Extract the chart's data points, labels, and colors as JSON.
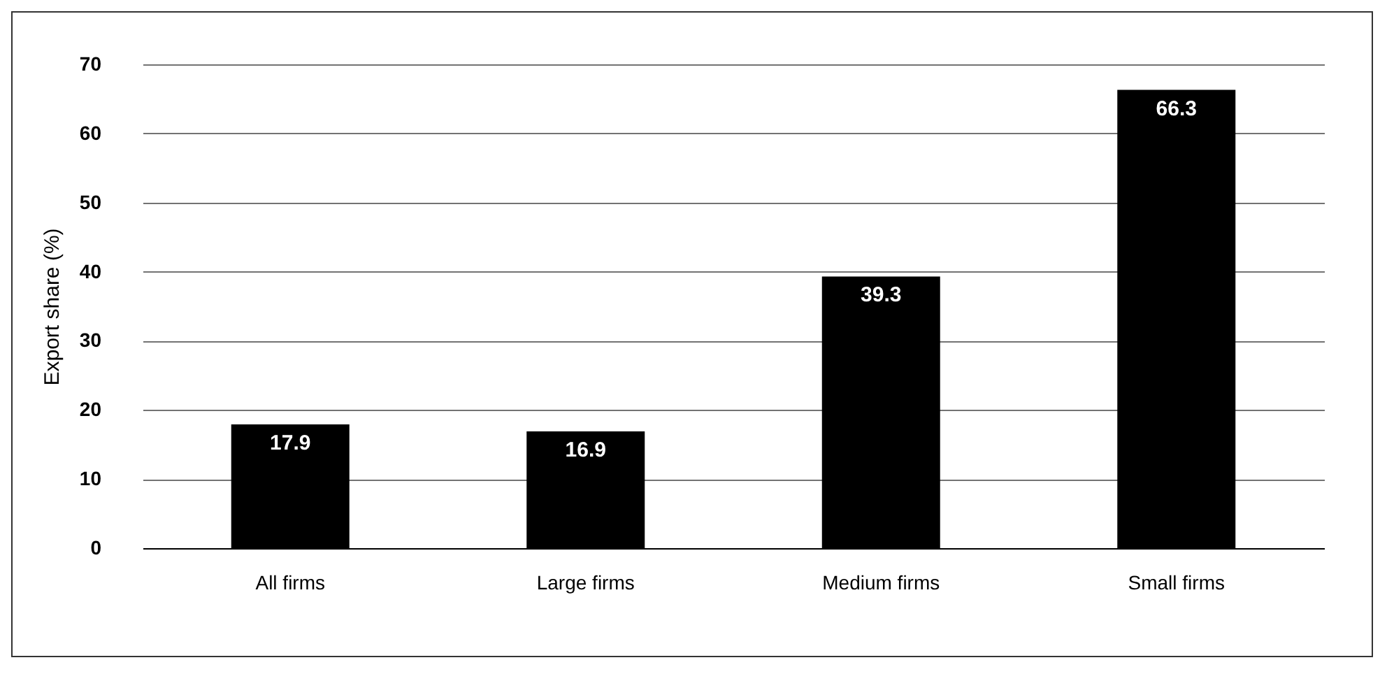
{
  "chart_data": {
    "type": "bar",
    "ylabel": "Export share (%)",
    "categories": [
      "All firms",
      "Large firms",
      "Medium firms",
      "Small firms"
    ],
    "values": [
      17.9,
      16.9,
      39.3,
      66.3
    ],
    "color": "#000000",
    "ylim": [
      0,
      70
    ],
    "yticks": [
      0,
      10,
      20,
      30,
      40,
      50,
      60,
      70
    ],
    "grid": "y",
    "data_labels": true
  }
}
